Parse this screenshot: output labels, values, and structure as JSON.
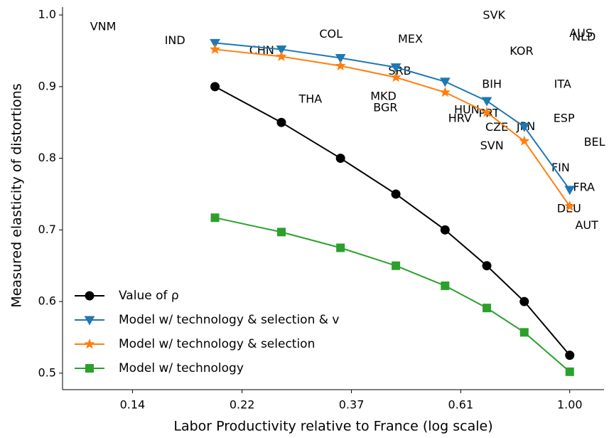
{
  "chart_data": {
    "type": "line",
    "xlabel": "Labor Productivity relative to France (log scale)",
    "ylabel": "Measured elasticity of distortions",
    "xscale": "log",
    "xlim": [
      0.098,
      1.17
    ],
    "ylim": [
      0.477,
      1.011
    ],
    "xticks": [
      {
        "value": 0.135,
        "label": "0.14"
      },
      {
        "value": 0.223,
        "label": "0.22"
      },
      {
        "value": 0.368,
        "label": "0.37"
      },
      {
        "value": 0.607,
        "label": "0.61"
      },
      {
        "value": 1.0,
        "label": "1.00"
      }
    ],
    "yticks": [
      0.5,
      0.6,
      0.7,
      0.8,
      0.9,
      {
        "value": 1.0,
        "label": "1.0"
      }
    ],
    "x": [
      0.197,
      0.267,
      0.35,
      0.451,
      0.565,
      0.684,
      0.812,
      1.0
    ],
    "series": [
      {
        "name": "Value of ρ",
        "color": "#000000",
        "marker": "circle",
        "values": [
          0.9,
          0.85,
          0.8,
          0.75,
          0.7,
          0.65,
          0.6,
          0.525
        ]
      },
      {
        "name": "Model w/ technology & selection & v",
        "color": "#1f77b4",
        "marker": "triangle-down",
        "values": [
          0.961,
          0.952,
          0.94,
          0.927,
          0.907,
          0.88,
          0.844,
          0.756
        ]
      },
      {
        "name": "Model w/ technology & selection",
        "color": "#ff7f0e",
        "marker": "star",
        "values": [
          0.952,
          0.942,
          0.929,
          0.913,
          0.892,
          0.864,
          0.824,
          0.733
        ]
      },
      {
        "name": "Model w/ technology",
        "color": "#2ca02c",
        "marker": "square",
        "values": [
          0.717,
          0.697,
          0.675,
          0.65,
          0.622,
          0.591,
          0.557,
          0.502
        ]
      }
    ],
    "legend": "lower left",
    "annotations": [
      {
        "text": "VNM",
        "x": 0.118,
        "y": 0.983
      },
      {
        "text": "IND",
        "x": 0.164,
        "y": 0.964
      },
      {
        "text": "CHN",
        "x": 0.244,
        "y": 0.95
      },
      {
        "text": "COL",
        "x": 0.335,
        "y": 0.973
      },
      {
        "text": "MEX",
        "x": 0.482,
        "y": 0.966
      },
      {
        "text": "SVK",
        "x": 0.707,
        "y": 0.999
      },
      {
        "text": "AUS",
        "x": 1.053,
        "y": 0.974
      },
      {
        "text": "NLD",
        "x": 1.067,
        "y": 0.969
      },
      {
        "text": "KOR",
        "x": 0.802,
        "y": 0.949
      },
      {
        "text": "SRB",
        "x": 0.459,
        "y": 0.921
      },
      {
        "text": "BIH",
        "x": 0.7,
        "y": 0.903
      },
      {
        "text": "ITA",
        "x": 0.968,
        "y": 0.903
      },
      {
        "text": "THA",
        "x": 0.305,
        "y": 0.882
      },
      {
        "text": "MKD",
        "x": 0.426,
        "y": 0.886
      },
      {
        "text": "BGR",
        "x": 0.43,
        "y": 0.87
      },
      {
        "text": "HUN",
        "x": 0.624,
        "y": 0.867
      },
      {
        "text": "PRT",
        "x": 0.691,
        "y": 0.862
      },
      {
        "text": "HRV",
        "x": 0.605,
        "y": 0.855
      },
      {
        "text": "CZE",
        "x": 0.716,
        "y": 0.843
      },
      {
        "text": "JPN",
        "x": 0.818,
        "y": 0.844
      },
      {
        "text": "ESP",
        "x": 0.974,
        "y": 0.855
      },
      {
        "text": "SVN",
        "x": 0.7,
        "y": 0.817
      },
      {
        "text": "BEL",
        "x": 1.12,
        "y": 0.822
      },
      {
        "text": "FIN",
        "x": 0.959,
        "y": 0.786
      },
      {
        "text": "FRA",
        "x": 1.067,
        "y": 0.759
      },
      {
        "text": "DEU",
        "x": 0.997,
        "y": 0.729
      },
      {
        "text": "AUT",
        "x": 1.081,
        "y": 0.706
      }
    ]
  }
}
